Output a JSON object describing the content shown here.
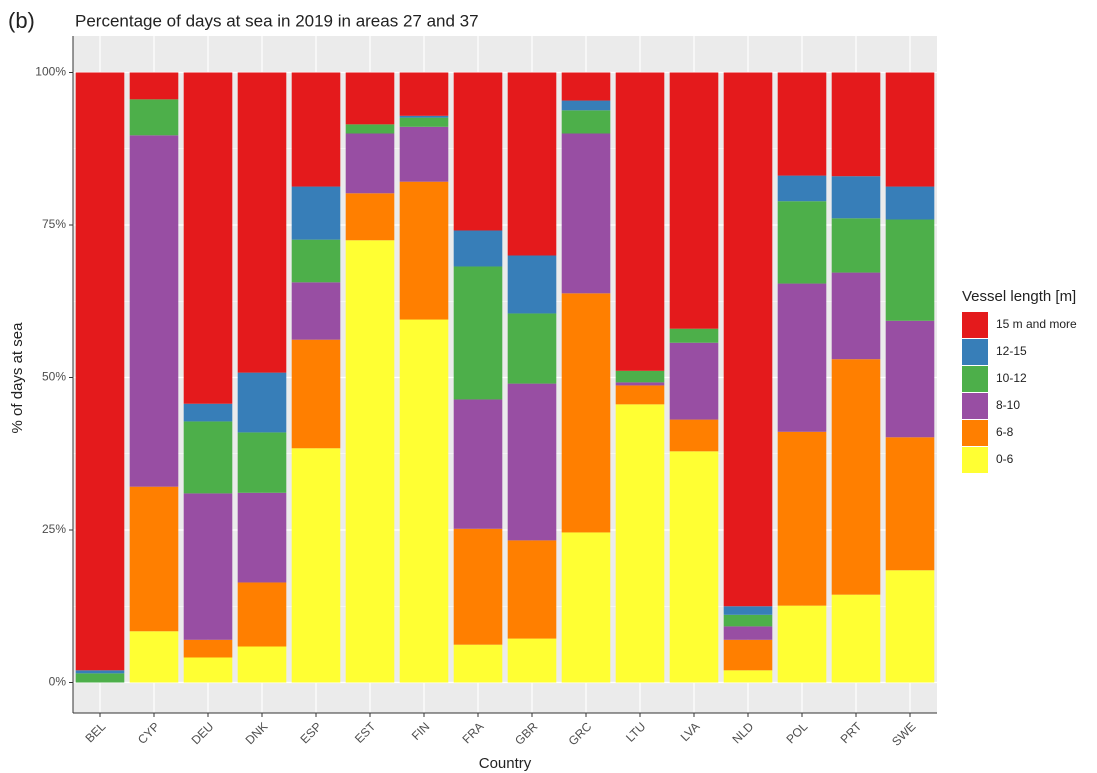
{
  "chart_data": {
    "type": "stacked_bar",
    "panel_label": "(b)",
    "title": "Percentage of days at sea in 2019 in areas 27 and 37",
    "x_label": "Country",
    "y_label": "% of days at sea",
    "legend_title": "Vessel length [m]",
    "legend_position": "right",
    "categories": [
      "BEL",
      "CYP",
      "DEU",
      "DNK",
      "ESP",
      "EST",
      "FIN",
      "FRA",
      "GBR",
      "GRC",
      "LTU",
      "LVA",
      "NLD",
      "POL",
      "PRT",
      "SWE"
    ],
    "series": [
      {
        "name": "0-6",
        "color": "#ffff33",
        "values": [
          0,
          8.4,
          4.1,
          5.9,
          38.4,
          72.5,
          59.5,
          6.2,
          7.2,
          24.6,
          45.6,
          37.9,
          2.0,
          12.6,
          14.4,
          18.4
        ]
      },
      {
        "name": "6-8",
        "color": "#ff7f00",
        "values": [
          0,
          23.7,
          2.9,
          10.5,
          17.8,
          7.7,
          22.6,
          19.0,
          16.1,
          39.2,
          3.1,
          5.2,
          5.0,
          28.5,
          38.6,
          21.8
        ]
      },
      {
        "name": "8-10",
        "color": "#984ea3",
        "values": [
          0,
          57.6,
          24.0,
          14.7,
          9.4,
          9.8,
          9.0,
          21.2,
          25.7,
          26.2,
          0.5,
          12.6,
          2.2,
          24.3,
          14.2,
          19.1
        ]
      },
      {
        "name": "10-12",
        "color": "#4daf4a",
        "values": [
          1.5,
          5.9,
          11.8,
          9.9,
          7.0,
          1.5,
          1.5,
          21.8,
          11.5,
          3.8,
          1.9,
          2.3,
          1.9,
          13.5,
          8.9,
          16.6
        ]
      },
      {
        "name": "12-15",
        "color": "#377eb8",
        "values": [
          0.5,
          0,
          2.9,
          9.8,
          8.7,
          0,
          0.3,
          5.9,
          9.5,
          1.6,
          0,
          0,
          1.4,
          4.2,
          6.9,
          5.4
        ]
      },
      {
        "name": "15 m and more",
        "color": "#e41a1c",
        "values": [
          98.0,
          4.4,
          54.3,
          49.2,
          18.7,
          8.5,
          7.1,
          25.9,
          30.0,
          4.6,
          48.9,
          42.0,
          87.5,
          16.9,
          17.0,
          18.7
        ]
      }
    ],
    "ylim": [
      -5,
      105
    ],
    "yticks": [
      {
        "value": 0,
        "label": "0%"
      },
      {
        "value": 25,
        "label": "25%"
      },
      {
        "value": 50,
        "label": "50%"
      },
      {
        "value": 75,
        "label": "75%"
      },
      {
        "value": 100,
        "label": "100%"
      }
    ],
    "grid": true
  }
}
